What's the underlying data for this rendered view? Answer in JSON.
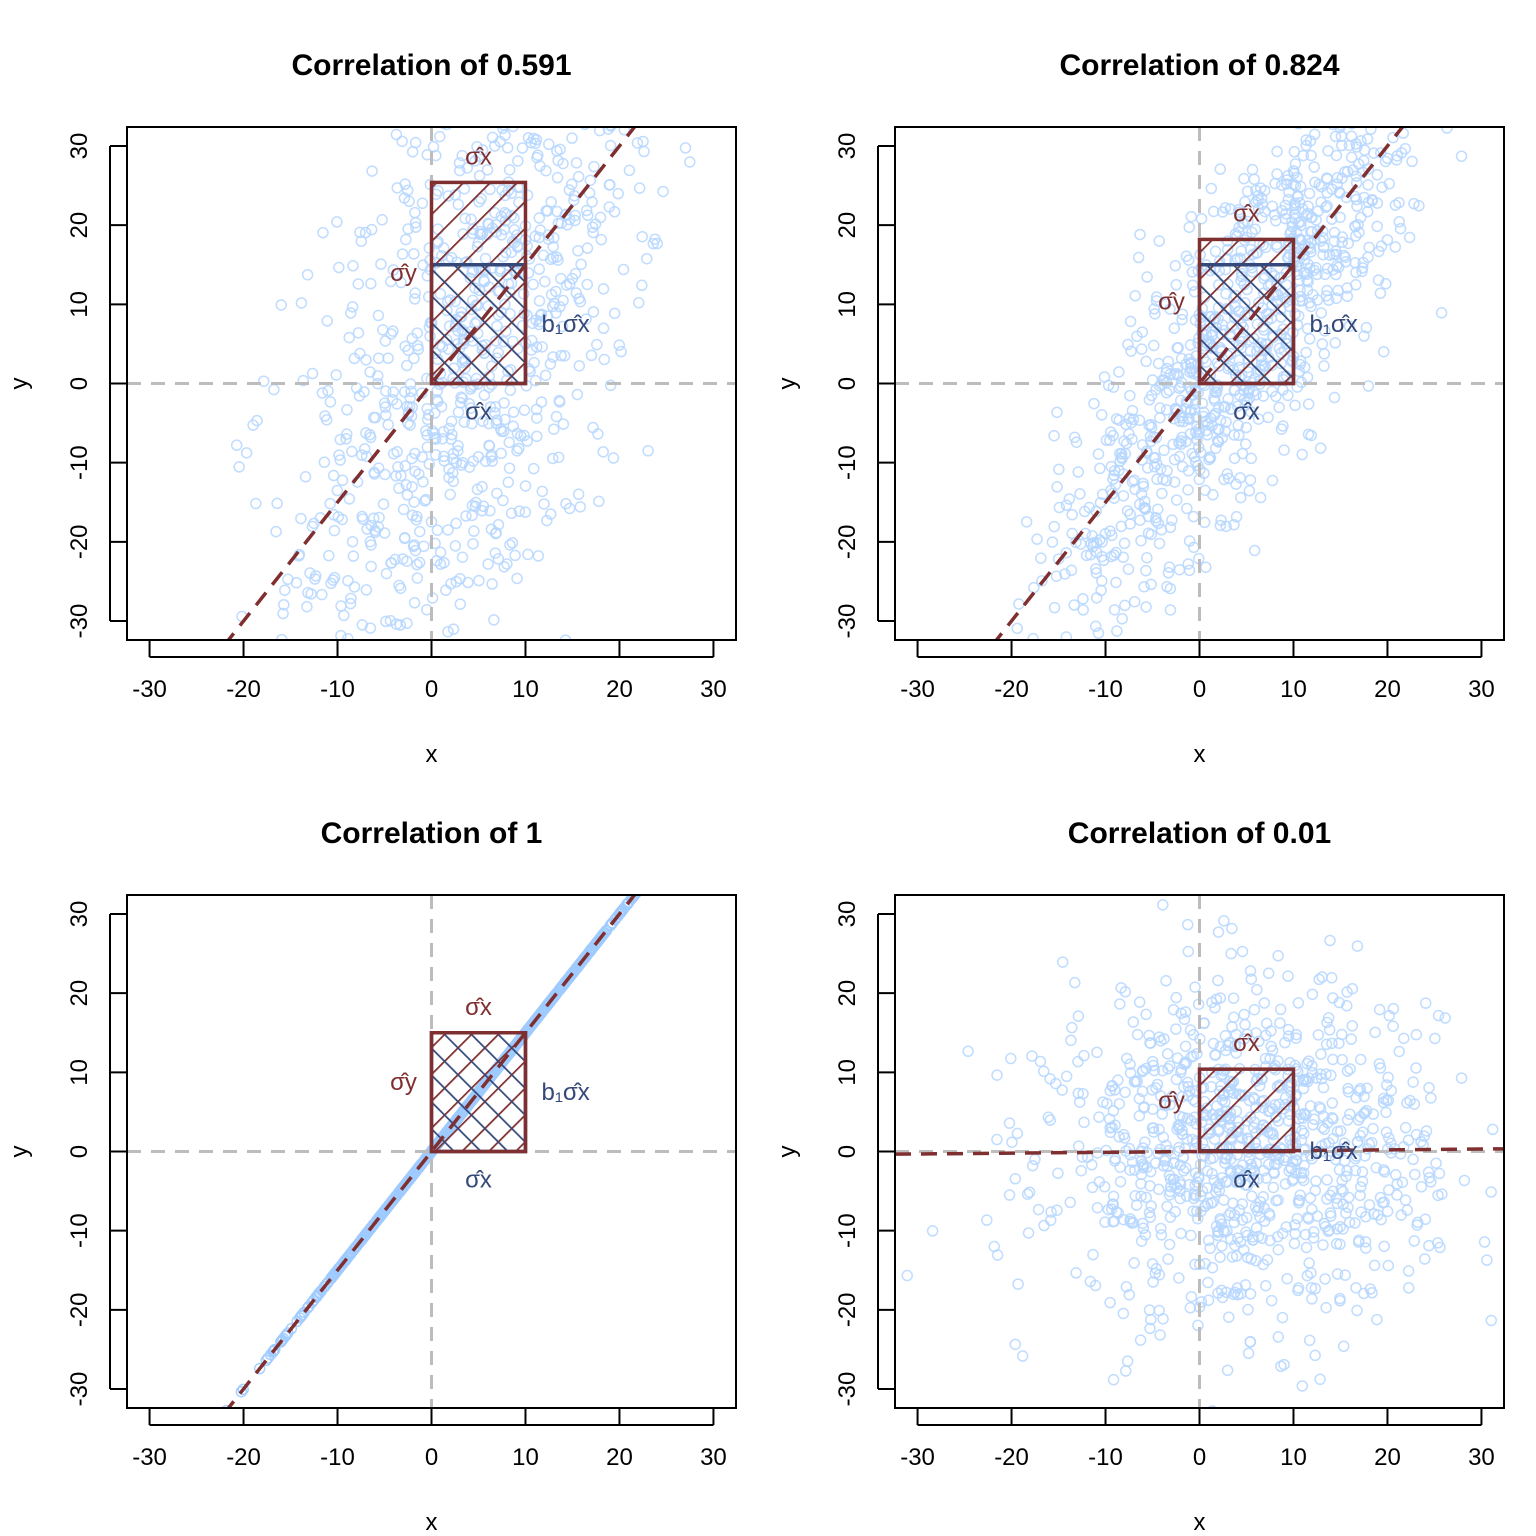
{
  "colors": {
    "points": "#b5d6ff",
    "points_dense": "#9ecbff",
    "line": "#7f2f2f",
    "rect_red": "#7f2f2f",
    "rect_blue": "#34497a",
    "zero_lines": "#bdbdbd"
  },
  "chart_data": [
    {
      "type": "scatter",
      "title": "Correlation of 0.591",
      "xlabel": "x",
      "ylabel": "y",
      "xlim": [
        -32.4,
        32.4
      ],
      "ylim": [
        -32.4,
        32.4
      ],
      "xticks": [
        -30,
        -20,
        -10,
        0,
        10,
        20,
        30
      ],
      "yticks": [
        -30,
        -20,
        -10,
        0,
        10,
        20,
        30
      ],
      "grid": false,
      "correlation": 0.591,
      "regression": {
        "intercept": 0,
        "slope": 1.5
      },
      "sigma_x": 10,
      "sigma_y": 25.4,
      "b1_sigma_x": 15,
      "points": {
        "n": 1000,
        "x_mean": 5,
        "x_sd": 10
      },
      "labels": {
        "top": "σ̂x",
        "left": "σ̂y",
        "right": "b₁σ̂x",
        "bottom": "σ̂x"
      }
    },
    {
      "type": "scatter",
      "title": "Correlation of 0.824",
      "xlabel": "x",
      "ylabel": "y",
      "xlim": [
        -32.4,
        32.4
      ],
      "ylim": [
        -32.4,
        32.4
      ],
      "xticks": [
        -30,
        -20,
        -10,
        0,
        10,
        20,
        30
      ],
      "yticks": [
        -30,
        -20,
        -10,
        0,
        10,
        20,
        30
      ],
      "grid": false,
      "correlation": 0.824,
      "regression": {
        "intercept": 0,
        "slope": 1.5
      },
      "sigma_x": 10,
      "sigma_y": 18.2,
      "b1_sigma_x": 15,
      "points": {
        "n": 1000,
        "x_mean": 5,
        "x_sd": 10
      },
      "labels": {
        "top": "σ̂x",
        "left": "σ̂y",
        "right": "b₁σ̂x",
        "bottom": "σ̂x"
      }
    },
    {
      "type": "scatter",
      "title": "Correlation of 1",
      "xlabel": "x",
      "ylabel": "y",
      "xlim": [
        -32.4,
        32.4
      ],
      "ylim": [
        -32.4,
        32.4
      ],
      "xticks": [
        -30,
        -20,
        -10,
        0,
        10,
        20,
        30
      ],
      "yticks": [
        -30,
        -20,
        -10,
        0,
        10,
        20,
        30
      ],
      "grid": false,
      "correlation": 1,
      "regression": {
        "intercept": 0,
        "slope": 1.5
      },
      "sigma_x": 10,
      "sigma_y": 15,
      "b1_sigma_x": 15,
      "points": {
        "n": 1000,
        "x_mean": 5,
        "x_sd": 10
      },
      "labels": {
        "top": "σ̂x",
        "left": "σ̂y",
        "right": "b₁σ̂x",
        "bottom": "σ̂x"
      }
    },
    {
      "type": "scatter",
      "title": "Correlation of 0.01",
      "xlabel": "x",
      "ylabel": "y",
      "xlim": [
        -32.4,
        32.4
      ],
      "ylim": [
        -32.4,
        32.4
      ],
      "xticks": [
        -30,
        -20,
        -10,
        0,
        10,
        20,
        30
      ],
      "yticks": [
        -30,
        -20,
        -10,
        0,
        10,
        20,
        30
      ],
      "grid": false,
      "correlation": 0.01,
      "regression": {
        "intercept": 0,
        "slope": 0.0104
      },
      "sigma_x": 10,
      "sigma_y": 10.4,
      "b1_sigma_x": 0.104,
      "points": {
        "n": 1000,
        "x_mean": 5,
        "x_sd": 10
      },
      "labels": {
        "top": "σ̂x",
        "left": "σ̂y",
        "right": "b₁σ̂x",
        "bottom": "σ̂x"
      }
    }
  ]
}
